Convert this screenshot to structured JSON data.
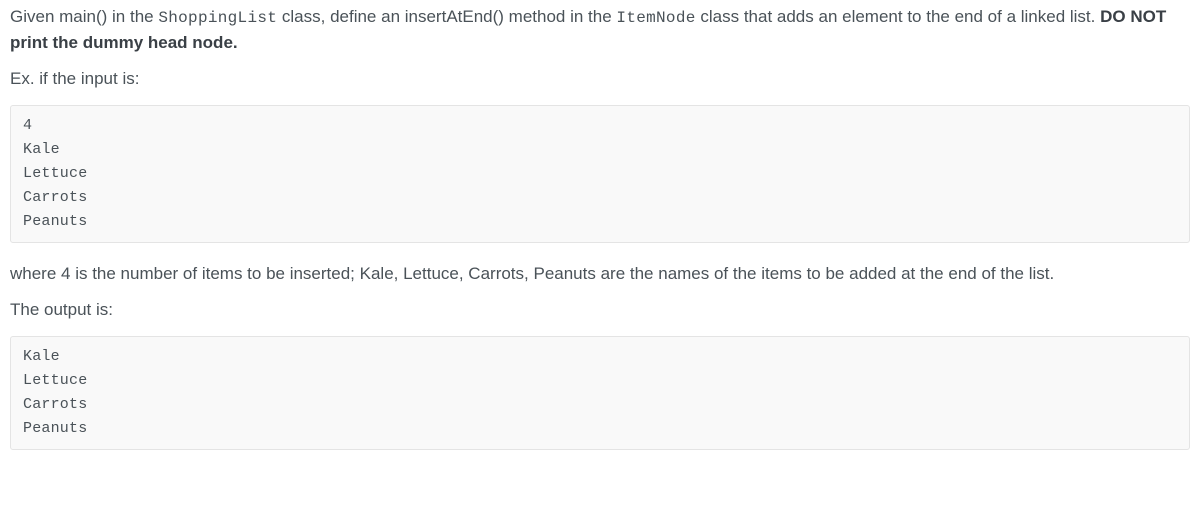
{
  "intro": {
    "part1": "Given main() in the ",
    "code1": "ShoppingList",
    "part2": " class, define an insertAtEnd() method in the ",
    "code2": "ItemNode",
    "part3": " class that adds an element to the end of a linked list. ",
    "bold": "DO NOT print the dummy head node."
  },
  "example_label": "Ex. if the input is:",
  "input_block": "4\nKale\nLettuce\nCarrots\nPeanuts",
  "explanation": "where 4 is the number of items to be inserted; Kale, Lettuce, Carrots, Peanuts are the names of the items to be added at the end of the list.",
  "output_label": "The output is:",
  "output_block": "Kale\nLettuce\nCarrots\nPeanuts"
}
